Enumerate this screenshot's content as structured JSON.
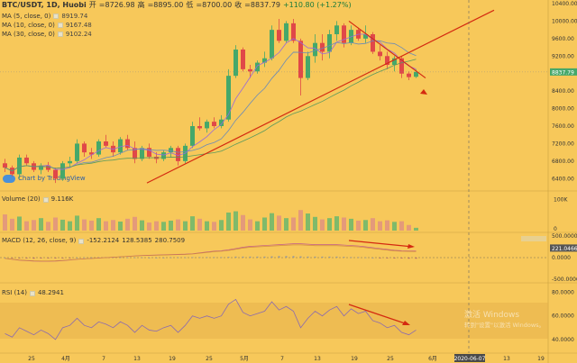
{
  "header": {
    "symbol": "BTC/USDT, 1D, Huobi",
    "open_label": "开",
    "open_val": "=8726.98",
    "high_label": "高",
    "high_val": "=8895.00",
    "low_label": "低",
    "low_val": "=8700.00",
    "close_label": "收",
    "close_val": "=8837.79",
    "change": "+110.80 (+1.27%)"
  },
  "ma_legend": [
    {
      "label": "MA (5, close, 0)",
      "value": "8919.74",
      "color": "#9a6ad8"
    },
    {
      "label": "MA (10, close, 0)",
      "value": "9167.48",
      "color": "#6a8ab8"
    },
    {
      "label": "MA (30, close, 0)",
      "value": "9102.24",
      "color": "#5c9a5c"
    }
  ],
  "watermark": "Chart by TradingView",
  "volume": {
    "label": "Volume (20)",
    "value": "9.116K"
  },
  "macd": {
    "label": "MACD (12, 26, close, 9)",
    "v1": "-152.2124",
    "v2": "128.5385",
    "v3": "280.7509"
  },
  "rsi": {
    "label": "RSI (14)",
    "value": "48.2941"
  },
  "price_axis": [
    "10400.00",
    "10000.00",
    "9600.00",
    "9200.00",
    "8800.00",
    "8400.00",
    "8000.00",
    "7600.00",
    "7200.00",
    "6800.00",
    "6400.00"
  ],
  "price_current": "8837.79",
  "vol_axis": [
    "100K",
    "0"
  ],
  "macd_axis": [
    "500.0000",
    "221.0466",
    "0.0000",
    "-500.0000"
  ],
  "rsi_axis": [
    "80.0000",
    "60.0000",
    "40.0000"
  ],
  "time_axis": [
    "25",
    "4月",
    "7",
    "13",
    "19",
    "25",
    "5月",
    "7",
    "13",
    "19",
    "25",
    "6月",
    "7",
    "13",
    "19"
  ],
  "cursor_date": "2020-06-07",
  "os_watermark": {
    "line1": "激活 Windows",
    "line2": "转到\"设置\"以激活 Windows。"
  },
  "colors": {
    "bg": "#f7c85a",
    "up": "#45a86a",
    "down": "#e04848",
    "trend": "#d42a10",
    "cursor": "#666666"
  },
  "chart_data": {
    "type": "candlestick",
    "title": "BTC/USDT, 1D, Huobi",
    "ylim": [
      6200,
      10400
    ],
    "candles": [
      [
        6750,
        6850,
        6550,
        6650
      ],
      [
        6650,
        6700,
        6450,
        6500
      ],
      [
        6500,
        6950,
        6400,
        6880
      ],
      [
        6880,
        6950,
        6700,
        6750
      ],
      [
        6750,
        6800,
        6550,
        6600
      ],
      [
        6600,
        6750,
        6500,
        6700
      ],
      [
        6700,
        6780,
        6550,
        6600
      ],
      [
        6600,
        6650,
        6300,
        6400
      ],
      [
        6400,
        6800,
        6350,
        6750
      ],
      [
        6750,
        6900,
        6650,
        6800
      ],
      [
        6800,
        7300,
        6750,
        7200
      ],
      [
        7200,
        7250,
        6900,
        7000
      ],
      [
        7000,
        7100,
        6850,
        6950
      ],
      [
        6950,
        7300,
        6900,
        7250
      ],
      [
        7250,
        7400,
        7100,
        7150
      ],
      [
        7150,
        7250,
        6900,
        7000
      ],
      [
        7000,
        7350,
        6950,
        7300
      ],
      [
        7300,
        7400,
        7050,
        7100
      ],
      [
        7100,
        7250,
        6750,
        6850
      ],
      [
        6850,
        7150,
        6800,
        7100
      ],
      [
        7100,
        7200,
        6850,
        6900
      ],
      [
        6900,
        7000,
        6750,
        6850
      ],
      [
        6850,
        7050,
        6800,
        7000
      ],
      [
        7000,
        7150,
        6900,
        7100
      ],
      [
        7100,
        7150,
        6700,
        6800
      ],
      [
        6800,
        7200,
        6750,
        7150
      ],
      [
        7150,
        7700,
        7100,
        7600
      ],
      [
        7600,
        7800,
        7500,
        7550
      ],
      [
        7550,
        7750,
        7450,
        7700
      ],
      [
        7700,
        7800,
        7550,
        7600
      ],
      [
        7600,
        7850,
        7550,
        7750
      ],
      [
        7750,
        8900,
        7700,
        8750
      ],
      [
        8750,
        9450,
        8700,
        9350
      ],
      [
        9350,
        9400,
        8850,
        8900
      ],
      [
        8900,
        9000,
        8700,
        8850
      ],
      [
        8850,
        9100,
        8800,
        9050
      ],
      [
        9050,
        9300,
        8950,
        9150
      ],
      [
        9150,
        9900,
        9100,
        9800
      ],
      [
        9800,
        10050,
        9500,
        9550
      ],
      [
        9550,
        10000,
        9500,
        9950
      ],
      [
        9950,
        10050,
        9500,
        9550
      ],
      [
        9550,
        9600,
        8300,
        8700
      ],
      [
        8700,
        9300,
        8650,
        9200
      ],
      [
        9200,
        9700,
        9050,
        9500
      ],
      [
        9500,
        9700,
        9100,
        9300
      ],
      [
        9300,
        9800,
        9150,
        9700
      ],
      [
        9700,
        10000,
        9550,
        9900
      ],
      [
        9900,
        9950,
        9400,
        9500
      ],
      [
        9500,
        9900,
        9450,
        9800
      ],
      [
        9800,
        9850,
        9550,
        9600
      ],
      [
        9600,
        9900,
        9500,
        9700
      ],
      [
        9700,
        9750,
        9250,
        9300
      ],
      [
        9300,
        9450,
        9100,
        9200
      ],
      [
        9200,
        9300,
        8900,
        9000
      ],
      [
        9000,
        9200,
        8850,
        9150
      ],
      [
        9150,
        9200,
        8700,
        8800
      ],
      [
        8800,
        8850,
        8650,
        8720
      ],
      [
        8727,
        8895,
        8700,
        8838
      ]
    ],
    "volume": [
      52,
      38,
      45,
      30,
      34,
      40,
      28,
      42,
      35,
      30,
      48,
      36,
      32,
      40,
      30,
      34,
      29,
      38,
      44,
      33,
      26,
      30,
      28,
      32,
      36,
      30,
      46,
      38,
      30,
      28,
      34,
      58,
      62,
      50,
      36,
      30,
      42,
      56,
      48,
      40,
      42,
      66,
      55,
      44,
      36,
      40,
      46,
      42,
      38,
      32,
      34,
      40,
      30,
      33,
      28,
      30,
      18,
      9
    ],
    "macd_hist": [
      0,
      -2,
      -3,
      -3,
      -4,
      -3,
      -2,
      -3,
      -2,
      -1,
      0,
      1,
      1,
      1,
      2,
      2,
      1,
      1,
      1,
      1,
      0,
      0,
      0,
      1,
      1,
      1,
      2,
      2,
      2,
      2,
      2,
      3,
      4,
      4,
      4,
      4,
      4,
      5,
      6,
      6,
      6,
      5,
      4,
      4,
      4,
      4,
      4,
      3,
      2,
      2,
      1,
      0,
      -1,
      -2,
      -3,
      -3,
      -4,
      -4
    ],
    "macd_line": [
      -20,
      -40,
      -60,
      -70,
      -80,
      -85,
      -85,
      -80,
      -70,
      -55,
      -40,
      -30,
      -20,
      -10,
      0,
      10,
      20,
      30,
      40,
      50,
      55,
      60,
      65,
      70,
      75,
      80,
      90,
      110,
      130,
      150,
      160,
      180,
      210,
      240,
      260,
      270,
      280,
      290,
      300,
      310,
      320,
      320,
      310,
      300,
      300,
      300,
      300,
      290,
      280,
      270,
      250,
      230,
      210,
      190,
      170,
      160,
      155,
      152
    ],
    "rsi": [
      45,
      42,
      50,
      47,
      44,
      48,
      45,
      40,
      50,
      52,
      58,
      52,
      50,
      55,
      53,
      50,
      55,
      52,
      46,
      52,
      48,
      47,
      50,
      52,
      46,
      52,
      60,
      58,
      60,
      58,
      60,
      70,
      74,
      63,
      60,
      62,
      64,
      72,
      65,
      68,
      64,
      50,
      58,
      64,
      60,
      65,
      68,
      60,
      66,
      62,
      64,
      56,
      54,
      50,
      52,
      46,
      44,
      48
    ],
    "annotations": [
      "trend line",
      "down arrow"
    ]
  }
}
